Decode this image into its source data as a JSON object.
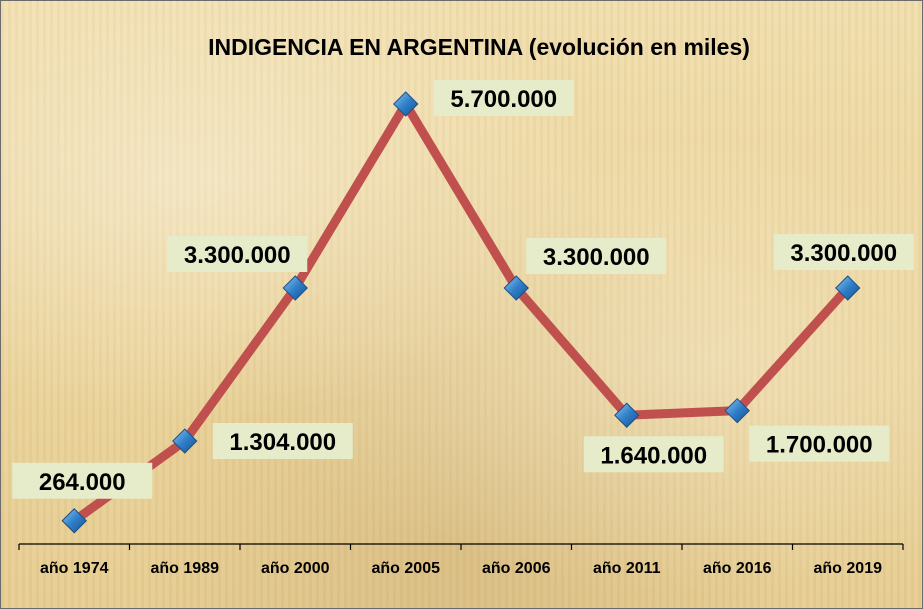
{
  "chart_data": {
    "type": "line",
    "title": "INDIGENCIA EN ARGENTINA (evolución en miles)",
    "categories": [
      "año 1974",
      "año 1989",
      "año 2000",
      "año 2005",
      "año 2006",
      "año 2011",
      "año 2016",
      "año 2019"
    ],
    "values": [
      264000,
      1304000,
      3300000,
      5700000,
      3300000,
      1640000,
      1700000,
      3300000
    ],
    "data_labels": [
      "264.000",
      "1.304.000",
      "3.300.000",
      "5.700.000",
      "3.300.000",
      "1.640.000",
      "1.700.000",
      "3.300.000"
    ],
    "xlabel": "",
    "ylabel": "",
    "grid": false,
    "legend": "none",
    "line_color": "#c0504d",
    "marker_color": "#2f7fc8",
    "label_bg": "#e6ecc9"
  }
}
